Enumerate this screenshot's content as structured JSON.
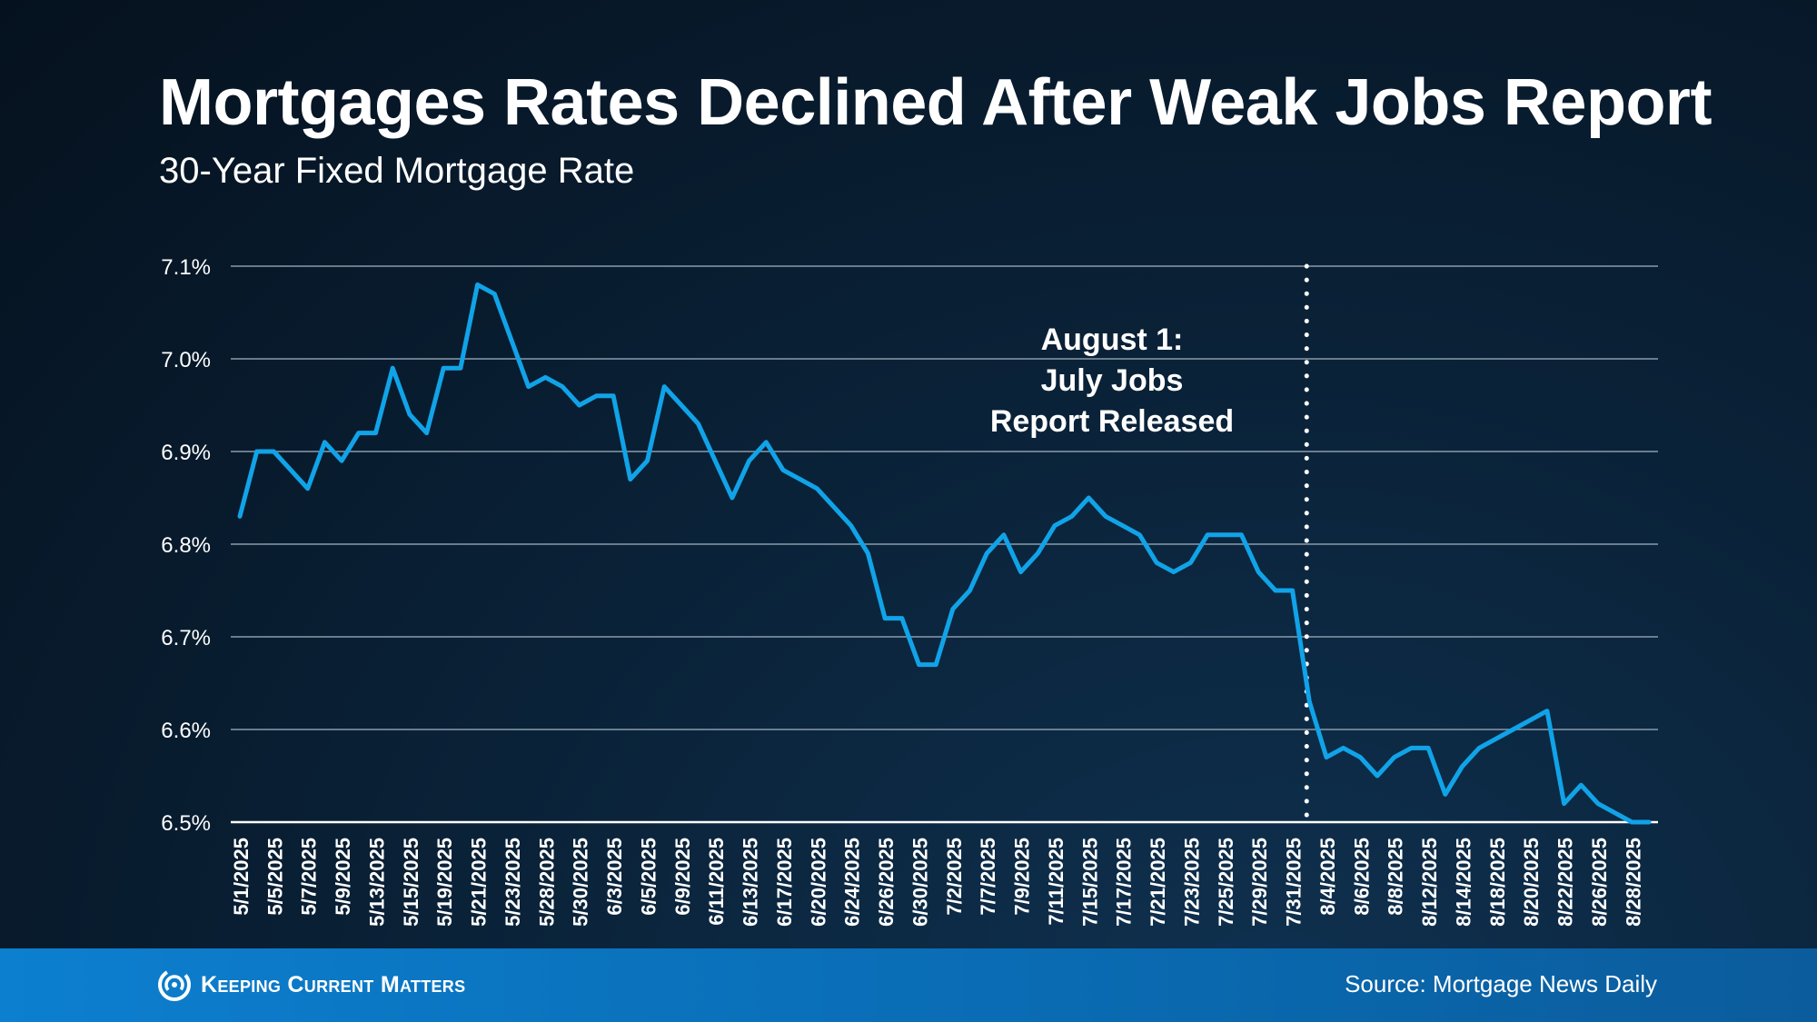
{
  "header": {
    "title": "Mortgages Rates Declined After Weak Jobs Report",
    "subtitle": "30-Year Fixed Mortgage Rate"
  },
  "footer": {
    "brand": "Keeping Current Matters",
    "source": "Source: Mortgage News Daily"
  },
  "colors": {
    "line": "#11a3e8",
    "grid": "#8a9bab",
    "baseline": "#ffffff",
    "marker": "#ffffff",
    "footer_band": "#0a6cb4"
  },
  "icons": {
    "logo": "swirl-logo-icon"
  },
  "chart_data": {
    "type": "line",
    "title": "",
    "xlabel": "",
    "ylabel": "",
    "ylim": [
      6.5,
      7.1
    ],
    "y_ticks": [
      6.5,
      6.6,
      6.7,
      6.8,
      6.9,
      7.0,
      7.1
    ],
    "y_tick_labels": [
      "6.5%",
      "6.6%",
      "6.7%",
      "6.8%",
      "6.9%",
      "7.0%",
      "7.1%"
    ],
    "grid": true,
    "x_labeled_every": 2,
    "x": [
      "5/1/2025",
      "5/2/2025",
      "5/5/2025",
      "5/6/2025",
      "5/7/2025",
      "5/8/2025",
      "5/9/2025",
      "5/12/2025",
      "5/13/2025",
      "5/14/2025",
      "5/15/2025",
      "5/16/2025",
      "5/19/2025",
      "5/20/2025",
      "5/21/2025",
      "5/22/2025",
      "5/23/2025",
      "5/27/2025",
      "5/28/2025",
      "5/29/2025",
      "5/30/2025",
      "6/2/2025",
      "6/3/2025",
      "6/4/2025",
      "6/5/2025",
      "6/6/2025",
      "6/9/2025",
      "6/10/2025",
      "6/11/2025",
      "6/12/2025",
      "6/13/2025",
      "6/16/2025",
      "6/17/2025",
      "6/18/2025",
      "6/20/2025",
      "6/23/2025",
      "6/24/2025",
      "6/25/2025",
      "6/26/2025",
      "6/27/2025",
      "6/30/2025",
      "7/1/2025",
      "7/2/2025",
      "7/3/2025",
      "7/7/2025",
      "7/8/2025",
      "7/9/2025",
      "7/10/2025",
      "7/11/2025",
      "7/14/2025",
      "7/15/2025",
      "7/16/2025",
      "7/17/2025",
      "7/18/2025",
      "7/21/2025",
      "7/22/2025",
      "7/23/2025",
      "7/24/2025",
      "7/25/2025",
      "7/28/2025",
      "7/29/2025",
      "7/30/2025",
      "7/31/2025",
      "8/1/2025",
      "8/4/2025",
      "8/5/2025",
      "8/6/2025",
      "8/7/2025",
      "8/8/2025",
      "8/11/2025",
      "8/12/2025",
      "8/13/2025",
      "8/14/2025",
      "8/15/2025",
      "8/18/2025",
      "8/19/2025",
      "8/20/2025",
      "8/21/2025",
      "8/22/2025",
      "8/25/2025",
      "8/26/2025",
      "8/27/2025",
      "8/28/2025",
      "8/29/2025"
    ],
    "series": [
      {
        "values": [
          6.83,
          6.9,
          6.9,
          6.88,
          6.86,
          6.91,
          6.89,
          6.92,
          6.92,
          6.99,
          6.94,
          6.92,
          6.99,
          6.99,
          7.08,
          7.07,
          7.02,
          6.97,
          6.98,
          6.97,
          6.95,
          6.96,
          6.96,
          6.87,
          6.89,
          6.97,
          6.95,
          6.93,
          6.89,
          6.85,
          6.89,
          6.91,
          6.88,
          6.87,
          6.86,
          6.84,
          6.82,
          6.79,
          6.72,
          6.72,
          6.67,
          6.67,
          6.73,
          6.75,
          6.79,
          6.81,
          6.77,
          6.79,
          6.82,
          6.83,
          6.85,
          6.83,
          6.82,
          6.81,
          6.78,
          6.77,
          6.78,
          6.81,
          6.81,
          6.81,
          6.77,
          6.75,
          6.75,
          6.63,
          6.57,
          6.58,
          6.57,
          6.55,
          6.57,
          6.58,
          6.58,
          6.53,
          6.56,
          6.58,
          6.59,
          6.6,
          6.61,
          6.62,
          6.52,
          6.54,
          6.52,
          6.51,
          6.5,
          6.5
        ]
      }
    ],
    "annotations": [
      {
        "at": "8/1/2025",
        "style": "dotted-vertical",
        "lines": [
          "August 1:",
          "July Jobs",
          "Report Released"
        ]
      }
    ]
  }
}
